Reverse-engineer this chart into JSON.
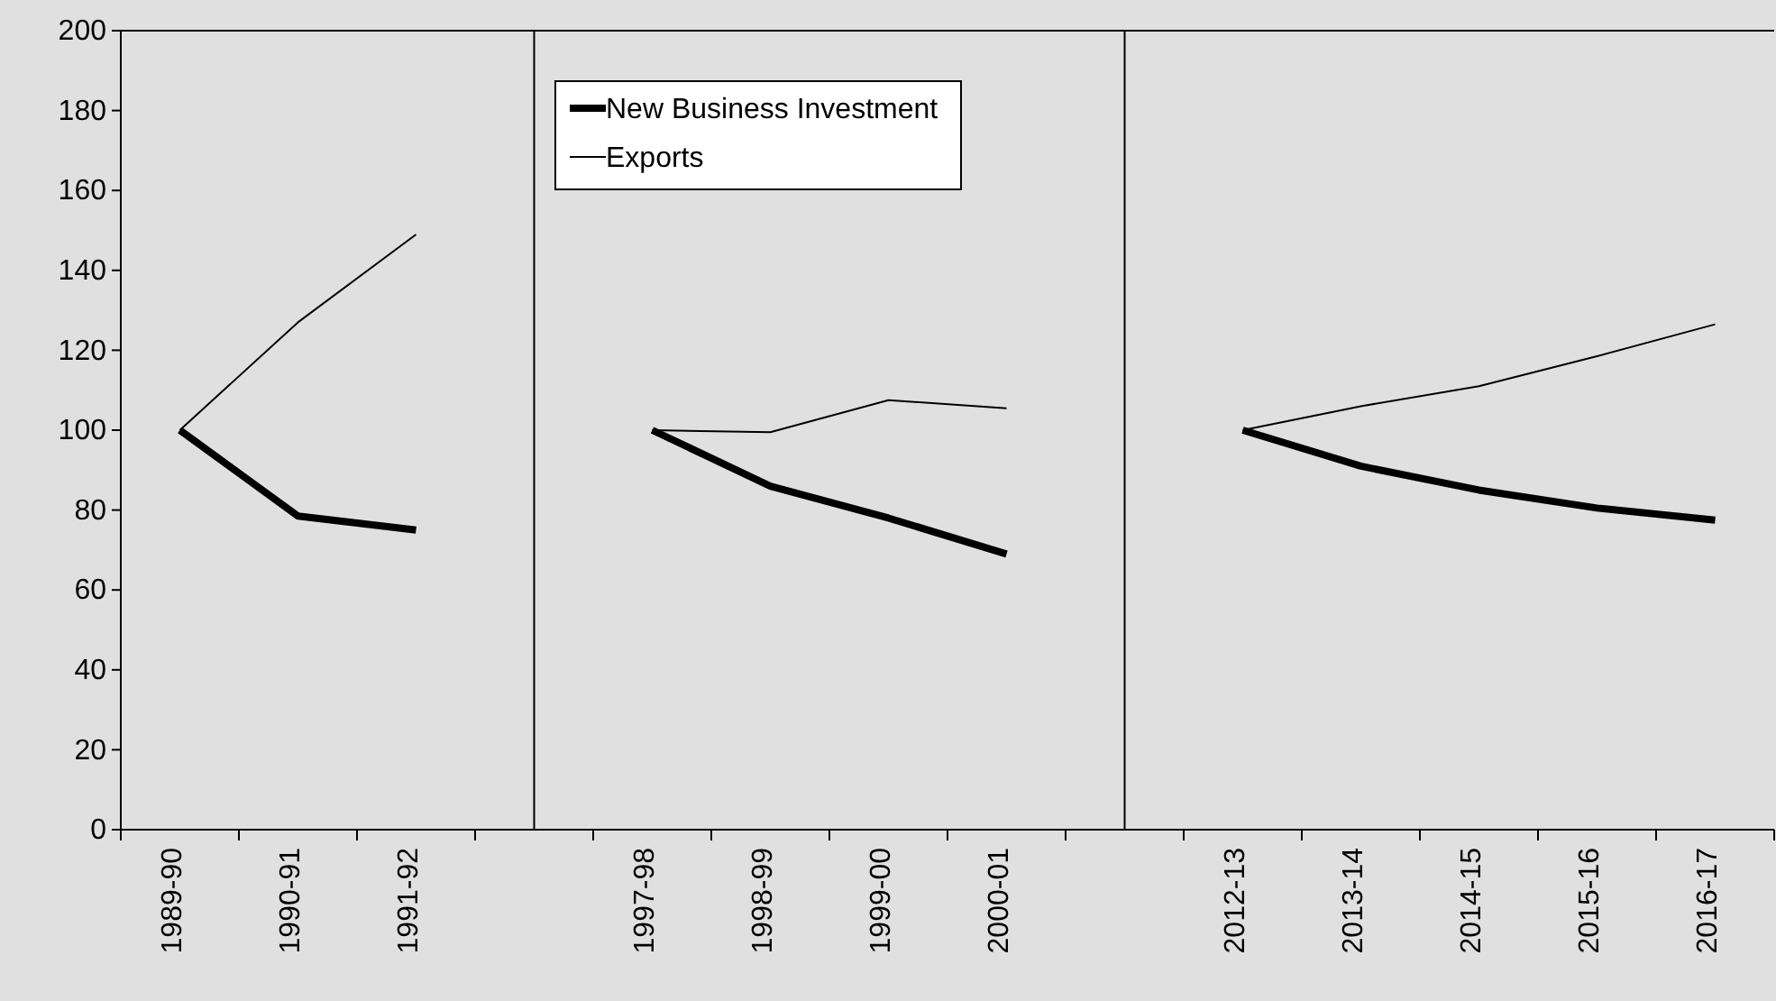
{
  "chart_data": {
    "type": "line",
    "categories": [
      "1989-90",
      "1990-91",
      "1991-92",
      null,
      "1997-98",
      "1998-99",
      "1999-00",
      "2000-01",
      null,
      "2012-13",
      "2013-14",
      "2014-15",
      "2015-16",
      "2016-17"
    ],
    "series": [
      {
        "name": "New Business Investment",
        "color": "#000000",
        "values": [
          100,
          78.5,
          75,
          null,
          100,
          86,
          78,
          69,
          null,
          100,
          91,
          85,
          80.5,
          77.5
        ]
      },
      {
        "name": "Exports",
        "color": "#000000",
        "values": [
          100,
          127,
          149,
          null,
          100,
          99.5,
          107.5,
          105.5,
          null,
          100,
          106,
          111,
          118.5,
          126.5
        ]
      }
    ],
    "ylim": [
      0,
      200
    ],
    "yticks": [
      0,
      20,
      40,
      60,
      80,
      100,
      120,
      140,
      160,
      180,
      200
    ],
    "legend": "top",
    "marker": "none",
    "line_style": "solid"
  }
}
